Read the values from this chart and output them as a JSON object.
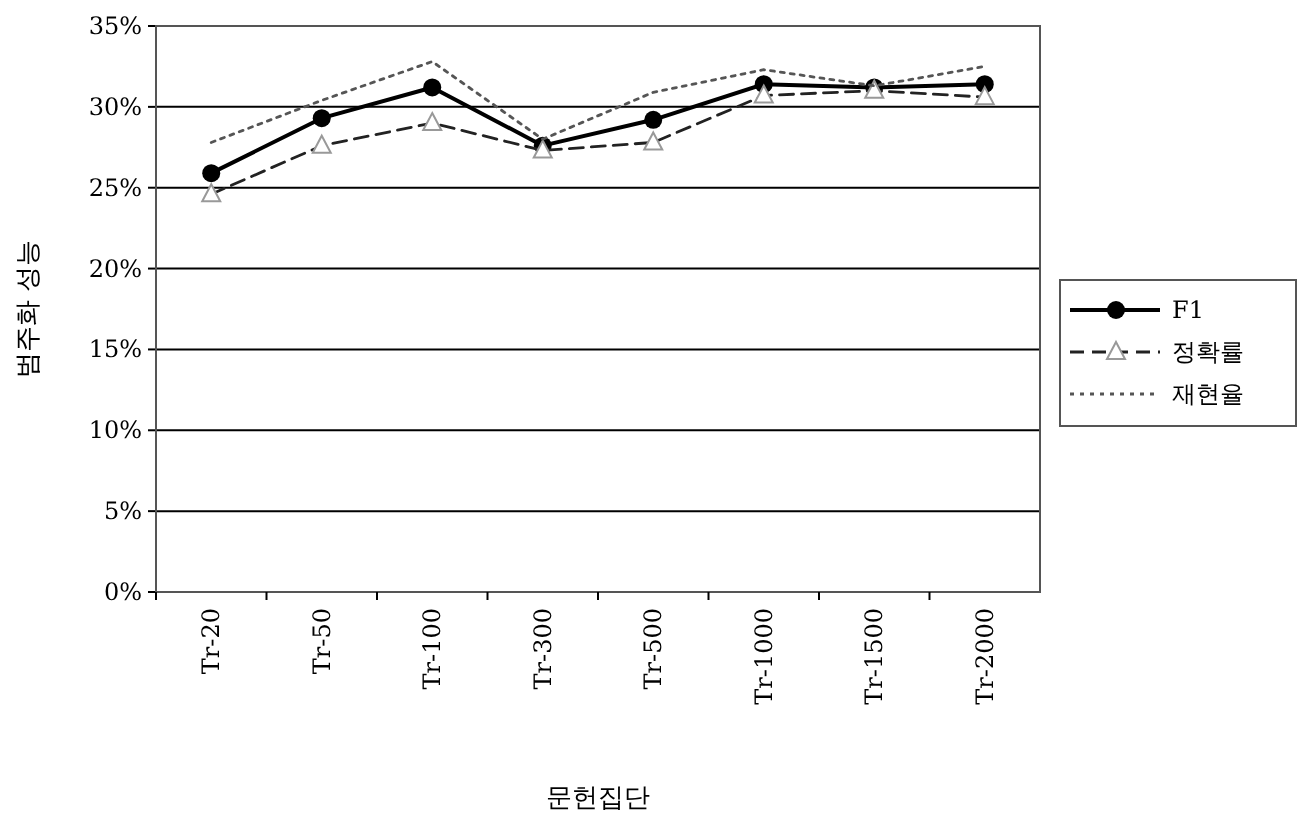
{
  "chart_data": {
    "type": "line",
    "xlabel": "문헌집단",
    "ylabel": "범주화 성능",
    "categories": [
      "Tr-20",
      "Tr-50",
      "Tr-100",
      "Tr-300",
      "Tr-500",
      "Tr-1000",
      "Tr-1500",
      "Tr-2000"
    ],
    "series": [
      {
        "name": "F1",
        "color": "#000000",
        "marker": "circle",
        "line_style": "solid",
        "values": [
          25.9,
          29.3,
          31.2,
          27.6,
          29.2,
          31.4,
          31.2,
          31.4
        ]
      },
      {
        "name": "정확률",
        "color": "#222222",
        "marker": "triangle",
        "line_style": "dashed",
        "values": [
          24.6,
          27.6,
          29.0,
          27.3,
          27.8,
          30.7,
          31.0,
          30.6
        ]
      },
      {
        "name": "재현율",
        "color": "#555555",
        "marker": "none",
        "line_style": "dotted",
        "values": [
          27.8,
          30.4,
          32.8,
          28.0,
          30.9,
          32.3,
          31.3,
          32.5
        ]
      }
    ],
    "ylim": [
      0,
      35
    ],
    "yticks": [
      {
        "value": 0,
        "label": "0%"
      },
      {
        "value": 5,
        "label": "5%"
      },
      {
        "value": 10,
        "label": "10%"
      },
      {
        "value": 15,
        "label": "15%"
      },
      {
        "value": 20,
        "label": "20%"
      },
      {
        "value": 25,
        "label": "25%"
      },
      {
        "value": 30,
        "label": "30%"
      },
      {
        "value": 35,
        "label": "35%"
      }
    ],
    "grid": "y",
    "legend": "right"
  }
}
